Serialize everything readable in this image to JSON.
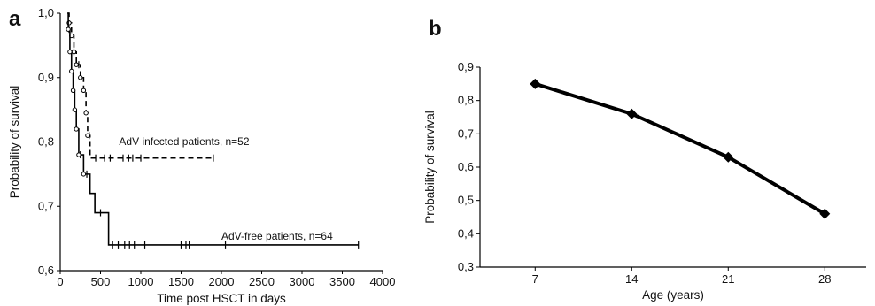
{
  "chart_data": [
    {
      "panel_label": "a",
      "type": "line",
      "subtype": "kaplan-meier",
      "xlabel": "Time post HSCT in days",
      "ylabel": "Probability of survival",
      "xlim": [
        0,
        4000
      ],
      "ylim": [
        0.6,
        1.0
      ],
      "xticks": [
        0,
        500,
        1000,
        1500,
        2000,
        2500,
        3000,
        3500,
        4000
      ],
      "xtick_labels": [
        "0",
        "500",
        "1000",
        "1500",
        "2000",
        "2500",
        "3000",
        "3500",
        "4000"
      ],
      "yticks": [
        0.6,
        0.7,
        0.8,
        0.9,
        1.0
      ],
      "ytick_labels": [
        "0,6",
        "0,7",
        "0,8",
        "0,9",
        "1,0"
      ],
      "grid": false,
      "series": [
        {
          "name": "AdV infected patients, n=52",
          "style": "dashed",
          "steps": [
            [
              90,
              1.0
            ],
            [
              110,
              0.985
            ],
            [
              140,
              0.965
            ],
            [
              170,
              0.94
            ],
            [
              200,
              0.92
            ],
            [
              250,
              0.9
            ],
            [
              290,
              0.88
            ],
            [
              320,
              0.845
            ],
            [
              340,
              0.81
            ],
            [
              370,
              0.775
            ],
            [
              1900,
              0.775
            ]
          ],
          "censored": [
            170,
            230,
            360,
            440,
            550,
            620,
            780,
            850,
            900,
            1000,
            1900
          ],
          "label_pos": [
            730,
            0.795
          ]
        },
        {
          "name": "AdV-free patients, n=64",
          "style": "solid",
          "steps": [
            [
              90,
              1.0
            ],
            [
              100,
              0.975
            ],
            [
              120,
              0.94
            ],
            [
              140,
              0.91
            ],
            [
              160,
              0.88
            ],
            [
              180,
              0.85
            ],
            [
              200,
              0.82
            ],
            [
              230,
              0.78
            ],
            [
              290,
              0.75
            ],
            [
              370,
              0.72
            ],
            [
              430,
              0.69
            ],
            [
              600,
              0.64
            ],
            [
              3700,
              0.64
            ]
          ],
          "censored": [
            110,
            250,
            330,
            500,
            650,
            720,
            800,
            860,
            920,
            1050,
            1500,
            1560,
            1600,
            2050,
            3700
          ],
          "label_pos": [
            2000,
            0.648
          ]
        }
      ]
    },
    {
      "panel_label": "b",
      "type": "line",
      "xlabel": "Age (years)",
      "ylabel": "Probability of survival",
      "categories": [
        "7",
        "14",
        "21",
        "28"
      ],
      "x": [
        7,
        14,
        21,
        28
      ],
      "values": [
        0.85,
        0.76,
        0.63,
        0.46
      ],
      "xlim": [
        3,
        31
      ],
      "ylim": [
        0.3,
        0.9
      ],
      "yticks": [
        0.3,
        0.4,
        0.5,
        0.6,
        0.7,
        0.8,
        0.9
      ],
      "ytick_labels": [
        "0,3",
        "0,4",
        "0,5",
        "0,6",
        "0,7",
        "0,8",
        "0,9"
      ],
      "grid": false,
      "marker": "diamond",
      "color": "#000000"
    }
  ]
}
